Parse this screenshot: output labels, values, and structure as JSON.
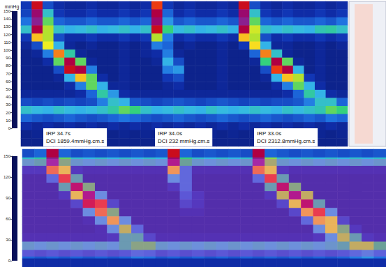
{
  "chart_data": [
    {
      "type": "heatmap",
      "tick_labels": false,
      "colorbar": {
        "label": "mmHg",
        "range": [
          0,
          150
        ],
        "ticks": [
          0,
          10,
          20,
          30,
          40,
          50,
          60,
          70,
          80,
          90,
          100,
          110,
          120,
          130,
          140,
          150
        ]
      },
      "annotations": [
        {
          "lines": [
            "IRP 34.7s",
            "DCI 1859.4mmHg.cm.s"
          ]
        },
        {
          "lines": [
            "IRP 34.0s",
            "DCI 232 mmHg.cm.s"
          ]
        },
        {
          "lines": [
            "IRP 33.0s",
            "DCI 2312.8mmHg.cm.s"
          ]
        }
      ],
      "cells": [
        [
          15,
          120,
          20,
          12,
          10,
          10,
          12,
          10,
          10,
          12,
          10,
          12,
          110,
          15,
          10,
          12,
          10,
          10,
          12,
          10,
          120,
          20,
          12,
          10,
          12,
          10,
          10,
          12,
          10,
          12
        ],
        [
          18,
          140,
          45,
          15,
          12,
          12,
          15,
          12,
          12,
          15,
          12,
          15,
          130,
          25,
          12,
          15,
          12,
          12,
          15,
          12,
          140,
          45,
          15,
          12,
          15,
          12,
          12,
          15,
          12,
          15
        ],
        [
          28,
          150,
          60,
          25,
          22,
          22,
          25,
          22,
          22,
          25,
          22,
          25,
          140,
          35,
          22,
          25,
          22,
          22,
          25,
          22,
          150,
          60,
          25,
          22,
          25,
          22,
          22,
          25,
          22,
          28
        ],
        [
          45,
          130,
          70,
          45,
          40,
          42,
          45,
          40,
          42,
          45,
          40,
          45,
          120,
          55,
          42,
          45,
          40,
          42,
          45,
          40,
          130,
          75,
          45,
          42,
          45,
          42,
          40,
          48,
          50,
          45
        ],
        [
          15,
          90,
          70,
          20,
          12,
          12,
          15,
          12,
          12,
          15,
          12,
          15,
          70,
          30,
          12,
          15,
          12,
          12,
          15,
          12,
          90,
          70,
          20,
          12,
          15,
          12,
          12,
          15,
          12,
          15
        ],
        [
          10,
          20,
          80,
          40,
          10,
          8,
          10,
          8,
          8,
          10,
          8,
          10,
          30,
          25,
          8,
          10,
          8,
          8,
          10,
          8,
          15,
          85,
          40,
          10,
          10,
          8,
          8,
          10,
          8,
          10
        ],
        [
          8,
          10,
          30,
          100,
          50,
          10,
          8,
          8,
          8,
          10,
          8,
          10,
          12,
          30,
          10,
          8,
          8,
          8,
          10,
          8,
          8,
          25,
          100,
          45,
          10,
          8,
          8,
          10,
          8,
          8
        ],
        [
          8,
          8,
          12,
          60,
          130,
          60,
          10,
          8,
          8,
          10,
          8,
          8,
          10,
          40,
          20,
          8,
          8,
          8,
          10,
          8,
          8,
          10,
          55,
          130,
          60,
          10,
          8,
          10,
          8,
          8
        ],
        [
          8,
          8,
          8,
          20,
          120,
          130,
          30,
          8,
          8,
          10,
          8,
          8,
          8,
          30,
          35,
          8,
          8,
          8,
          10,
          8,
          8,
          8,
          20,
          110,
          130,
          40,
          8,
          10,
          8,
          8
        ],
        [
          8,
          8,
          8,
          10,
          40,
          90,
          60,
          12,
          8,
          10,
          8,
          8,
          8,
          15,
          20,
          8,
          8,
          8,
          10,
          8,
          8,
          8,
          10,
          40,
          90,
          70,
          15,
          10,
          8,
          8
        ],
        [
          8,
          8,
          8,
          8,
          12,
          30,
          60,
          40,
          10,
          10,
          8,
          8,
          8,
          10,
          12,
          8,
          8,
          8,
          10,
          8,
          8,
          8,
          8,
          12,
          30,
          60,
          40,
          12,
          8,
          8
        ],
        [
          10,
          10,
          10,
          10,
          10,
          12,
          25,
          50,
          35,
          12,
          10,
          10,
          10,
          10,
          10,
          10,
          10,
          10,
          10,
          10,
          10,
          10,
          10,
          10,
          12,
          25,
          50,
          40,
          12,
          10
        ],
        [
          20,
          18,
          20,
          18,
          20,
          18,
          20,
          30,
          45,
          40,
          22,
          20,
          18,
          20,
          22,
          20,
          18,
          20,
          22,
          20,
          18,
          20,
          18,
          20,
          20,
          22,
          30,
          45,
          45,
          25
        ],
        [
          45,
          42,
          40,
          45,
          42,
          40,
          42,
          45,
          50,
          60,
          55,
          45,
          40,
          42,
          45,
          42,
          40,
          45,
          42,
          40,
          42,
          45,
          42,
          40,
          45,
          42,
          45,
          48,
          60,
          55
        ],
        [
          25,
          22,
          20,
          22,
          25,
          22,
          20,
          22,
          25,
          28,
          25,
          22,
          20,
          22,
          25,
          22,
          20,
          22,
          25,
          22,
          20,
          22,
          25,
          22,
          20,
          22,
          25,
          22,
          28,
          25
        ],
        [
          12,
          10,
          12,
          10,
          12,
          10,
          12,
          10,
          12,
          10,
          12,
          10,
          12,
          10,
          12,
          10,
          12,
          10,
          12,
          10,
          12,
          10,
          12,
          10,
          12,
          10,
          12,
          10,
          12,
          10
        ],
        [
          8,
          9,
          8,
          9,
          8,
          9,
          8,
          9,
          8,
          9,
          8,
          9,
          8,
          9,
          8,
          9,
          8,
          9,
          8,
          9,
          8,
          9,
          8,
          9,
          8,
          9,
          8,
          9,
          8,
          9
        ],
        [
          8,
          8,
          8,
          8,
          8,
          8,
          8,
          8,
          8,
          8,
          8,
          8,
          8,
          8,
          8,
          8,
          8,
          8,
          8,
          8,
          8,
          8,
          8,
          8,
          8,
          8,
          8,
          8,
          8,
          8
        ]
      ]
    },
    {
      "type": "heatmap",
      "tick_labels": false,
      "colorbar": {
        "range": [
          0,
          150
        ],
        "ticks": [
          0,
          30,
          60,
          90,
          120,
          150
        ]
      },
      "cells": [
        [
          20,
          25,
          130,
          25,
          20,
          22,
          20,
          22,
          20,
          22,
          20,
          22,
          120,
          25,
          20,
          22,
          20,
          22,
          20,
          130,
          25,
          22,
          20,
          22,
          20,
          22,
          20,
          22,
          20,
          22
        ],
        [
          45,
          50,
          150,
          60,
          45,
          42,
          45,
          42,
          45,
          42,
          45,
          42,
          140,
          55,
          45,
          42,
          45,
          42,
          45,
          150,
          65,
          45,
          42,
          45,
          42,
          45,
          42,
          45,
          42,
          45
        ],
        [
          15,
          15,
          100,
          80,
          15,
          12,
          12,
          12,
          12,
          12,
          12,
          12,
          90,
          30,
          12,
          12,
          12,
          12,
          12,
          100,
          80,
          15,
          12,
          12,
          12,
          12,
          12,
          12,
          12,
          12
        ],
        [
          10,
          10,
          30,
          110,
          50,
          10,
          10,
          10,
          10,
          10,
          10,
          10,
          40,
          30,
          10,
          10,
          10,
          10,
          10,
          30,
          110,
          50,
          10,
          10,
          10,
          10,
          10,
          10,
          10,
          10
        ],
        [
          10,
          10,
          10,
          50,
          130,
          60,
          10,
          10,
          10,
          10,
          10,
          10,
          15,
          30,
          10,
          10,
          10,
          10,
          10,
          10,
          50,
          130,
          60,
          10,
          10,
          10,
          10,
          10,
          10,
          10
        ],
        [
          10,
          10,
          10,
          15,
          80,
          140,
          40,
          10,
          10,
          10,
          10,
          10,
          10,
          25,
          15,
          10,
          10,
          10,
          10,
          10,
          15,
          70,
          140,
          70,
          10,
          10,
          10,
          10,
          10,
          10
        ],
        [
          10,
          10,
          10,
          10,
          20,
          120,
          110,
          20,
          10,
          10,
          10,
          10,
          10,
          20,
          15,
          10,
          10,
          10,
          10,
          10,
          10,
          20,
          80,
          130,
          50,
          10,
          10,
          10,
          10,
          10
        ],
        [
          10,
          10,
          10,
          10,
          10,
          40,
          100,
          60,
          10,
          10,
          10,
          10,
          10,
          12,
          12,
          10,
          10,
          10,
          10,
          10,
          10,
          10,
          20,
          90,
          110,
          40,
          10,
          10,
          10,
          10
        ],
        [
          10,
          10,
          10,
          10,
          10,
          12,
          40,
          90,
          40,
          10,
          10,
          10,
          10,
          10,
          10,
          10,
          10,
          10,
          10,
          10,
          10,
          10,
          10,
          30,
          90,
          80,
          20,
          10,
          10,
          10
        ],
        [
          10,
          10,
          10,
          10,
          10,
          10,
          12,
          40,
          70,
          30,
          10,
          10,
          10,
          10,
          10,
          10,
          10,
          10,
          10,
          10,
          10,
          10,
          10,
          10,
          40,
          80,
          60,
          15,
          10,
          10
        ],
        [
          12,
          12,
          12,
          12,
          12,
          12,
          12,
          15,
          50,
          50,
          20,
          12,
          12,
          12,
          12,
          12,
          12,
          12,
          12,
          12,
          12,
          12,
          12,
          12,
          15,
          40,
          70,
          50,
          15,
          12
        ],
        [
          45,
          42,
          45,
          42,
          45,
          42,
          45,
          42,
          50,
          60,
          60,
          45,
          42,
          45,
          42,
          45,
          42,
          45,
          42,
          45,
          42,
          45,
          42,
          45,
          42,
          45,
          50,
          70,
          70,
          55
        ],
        [
          25,
          22,
          25,
          22,
          25,
          22,
          25,
          22,
          25,
          30,
          28,
          22,
          25,
          22,
          25,
          22,
          25,
          22,
          25,
          22,
          25,
          22,
          25,
          22,
          25,
          22,
          25,
          30,
          35,
          28
        ],
        [
          12,
          12,
          12,
          12,
          12,
          12,
          12,
          12,
          12,
          12,
          12,
          12,
          12,
          12,
          12,
          12,
          12,
          12,
          12,
          12,
          12,
          12,
          12,
          12,
          12,
          12,
          12,
          12,
          12,
          12
        ]
      ]
    }
  ]
}
